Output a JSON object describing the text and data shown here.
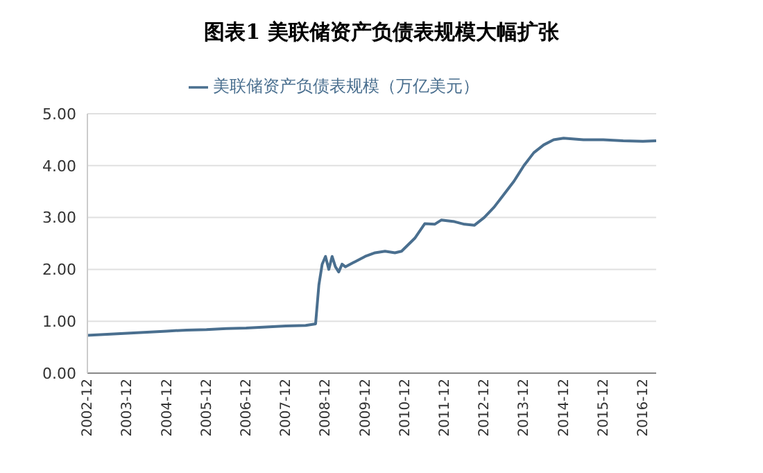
{
  "chart_data": {
    "type": "line",
    "title": "图表1 美联储资产负债表规模大幅扩张",
    "x": [
      "2002-12",
      "2003-06",
      "2003-12",
      "2004-06",
      "2004-12",
      "2005-06",
      "2005-12",
      "2006-06",
      "2006-12",
      "2007-06",
      "2007-12",
      "2008-06",
      "2008-09",
      "2008-10",
      "2008-11",
      "2008-12",
      "2009-01",
      "2009-02",
      "2009-03",
      "2009-04",
      "2009-05",
      "2009-06",
      "2009-09",
      "2009-12",
      "2010-03",
      "2010-06",
      "2010-09",
      "2010-11",
      "2011-03",
      "2011-06",
      "2011-09",
      "2011-11",
      "2012-03",
      "2012-06",
      "2012-09",
      "2012-12",
      "2013-03",
      "2013-06",
      "2013-09",
      "2013-12",
      "2014-03",
      "2014-06",
      "2014-09",
      "2014-12",
      "2015-06",
      "2015-12",
      "2016-06",
      "2016-12",
      "2017-04"
    ],
    "series": [
      {
        "name": "美联储资产负债表规模（万亿美元）",
        "color": "#4a6f8f",
        "values": [
          0.73,
          0.75,
          0.77,
          0.79,
          0.81,
          0.83,
          0.84,
          0.86,
          0.87,
          0.89,
          0.91,
          0.92,
          0.95,
          1.7,
          2.1,
          2.25,
          2.0,
          2.25,
          2.05,
          1.95,
          2.1,
          2.05,
          2.15,
          2.25,
          2.32,
          2.35,
          2.32,
          2.35,
          2.6,
          2.88,
          2.87,
          2.95,
          2.92,
          2.87,
          2.85,
          3.0,
          3.2,
          3.45,
          3.7,
          4.0,
          4.25,
          4.4,
          4.5,
          4.53,
          4.5,
          4.5,
          4.48,
          4.47,
          4.48
        ]
      }
    ],
    "xlim": [
      "2002-12",
      "2017-04"
    ],
    "xticks": [
      "2002-12",
      "2003-12",
      "2004-12",
      "2005-12",
      "2006-12",
      "2007-12",
      "2008-12",
      "2009-12",
      "2010-12",
      "2011-12",
      "2012-12",
      "2013-12",
      "2014-12",
      "2015-12",
      "2016-12"
    ],
    "ylim": [
      0,
      5
    ],
    "yticks": [
      {
        "value": 0,
        "label": "0.00"
      },
      {
        "value": 1,
        "label": "1.00"
      },
      {
        "value": 2,
        "label": "2.00"
      },
      {
        "value": 3,
        "label": "3.00"
      },
      {
        "value": 4,
        "label": "4.00"
      },
      {
        "value": 5,
        "label": "5.00"
      }
    ],
    "grid": "y",
    "legend": "top",
    "marker": "none",
    "line_style": "solid"
  }
}
